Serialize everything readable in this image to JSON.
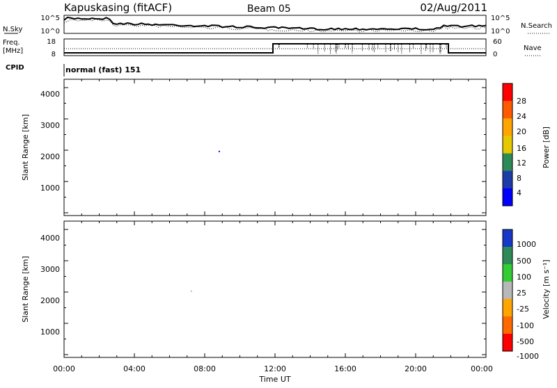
{
  "header": {
    "station": "Kapuskasing (fitACF)",
    "beam": "Beam 05",
    "date": "02/Aug/2011"
  },
  "noise_panel": {
    "left_label": "N.Sky",
    "right_label": "N.Search",
    "left_ticks": [
      "10^5",
      "10^0"
    ],
    "right_ticks": [
      "10^5",
      "10^0"
    ]
  },
  "freq_panel": {
    "left_label_1": "Freq.",
    "left_label_2": "[MHz]",
    "right_label": "Nave",
    "left_ticks": [
      "18",
      "8"
    ],
    "right_ticks": [
      "60",
      "0"
    ]
  },
  "cpid": {
    "label": "CPID",
    "mode": "normal (fast) 151"
  },
  "power_colorbar": {
    "title": "Power [dB]",
    "ticks": [
      "28",
      "24",
      "20",
      "16",
      "12",
      "8",
      "4"
    ],
    "colors": [
      "#ff0000",
      "#ff5a00",
      "#ffa500",
      "#e6c800",
      "#2e8b57",
      "#1e3ca8",
      "#0000ff"
    ]
  },
  "velocity_colorbar": {
    "title": "Velocity [m s⁻¹]",
    "ticks": [
      "1000",
      "500",
      "100",
      "25",
      "-25",
      "-100",
      "-500",
      "-1000"
    ],
    "colors": [
      "#1838c8",
      "#2e8b57",
      "#33cc33",
      "#b8b8b8",
      "#ffa500",
      "#ff6a00",
      "#ff0000"
    ]
  },
  "chart_data": [
    {
      "type": "heatmap",
      "title": "",
      "ylabel": "Slant Range [km]",
      "xlabel": "Time UT",
      "ylim": [
        180,
        4550
      ],
      "y_ticks": [
        "4000",
        "3000",
        "2000",
        "1000"
      ],
      "x_ticks": [
        "00:00",
        "04:00",
        "08:00",
        "12:00",
        "16:00",
        "20:00",
        "00:00"
      ],
      "colorbar": "Power [dB]",
      "color_range": [
        0,
        30
      ]
    },
    {
      "type": "heatmap",
      "title": "",
      "ylabel": "Slant Range [km]",
      "xlabel": "Time UT",
      "ylim": [
        180,
        4550
      ],
      "y_ticks": [
        "4000",
        "3000",
        "2000",
        "1000"
      ],
      "x_ticks": [
        "00:00",
        "04:00",
        "08:00",
        "12:00",
        "16:00",
        "20:00",
        "00:00"
      ],
      "colorbar": "Velocity [m s⁻¹]",
      "color_range": [
        -1000,
        1000
      ]
    }
  ]
}
